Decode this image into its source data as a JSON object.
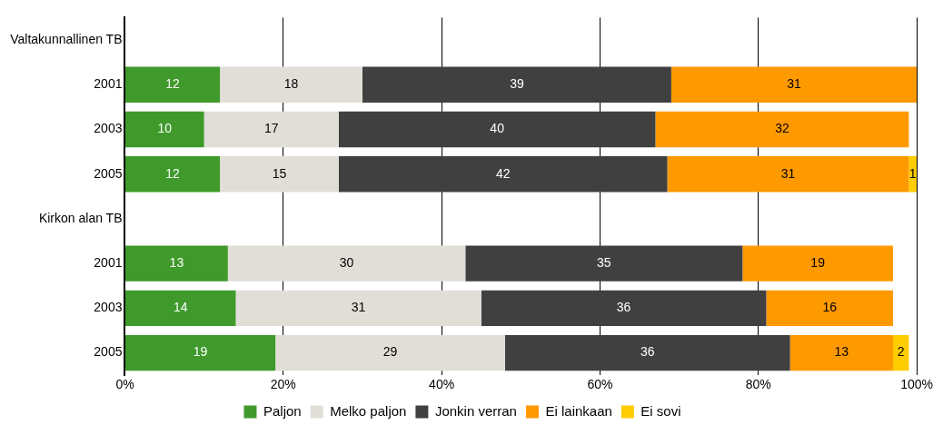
{
  "chart_data": {
    "type": "bar",
    "orientation": "horizontal",
    "stacked": true,
    "categories": [
      "Valtakunnallinen TB",
      "2001",
      "2003",
      "2005",
      "Kirkon alan TB",
      "2001",
      "2003",
      "2005"
    ],
    "series": [
      {
        "name": "Paljon",
        "color": "#3f9a2b",
        "values": [
          null,
          12,
          10,
          12,
          null,
          13,
          14,
          19
        ],
        "value_labels": [
          null,
          "12",
          "10",
          "12",
          null,
          "13",
          "14",
          "19"
        ]
      },
      {
        "name": "Melko paljon",
        "color": "#e1ded7",
        "values": [
          null,
          18,
          17,
          15,
          null,
          30,
          31,
          29
        ],
        "value_labels": [
          null,
          "18",
          "17",
          "15",
          null,
          "30",
          "31",
          "29"
        ]
      },
      {
        "name": "Jonkin verran",
        "color": "#404040",
        "values": [
          null,
          39,
          40,
          41.5,
          null,
          35,
          36,
          36
        ],
        "value_labels": [
          null,
          "39",
          "40",
          "42",
          null,
          "35",
          "36",
          "36"
        ]
      },
      {
        "name": "Ei lainkaan",
        "color": "#ff9900",
        "values": [
          null,
          31,
          32,
          30.5,
          null,
          19,
          16,
          13
        ],
        "value_labels": [
          null,
          "31",
          "32",
          "31",
          null,
          "19",
          "16",
          "13"
        ]
      },
      {
        "name": "Ei sovi",
        "color": "#ffcc00",
        "values": [
          null,
          null,
          null,
          1,
          null,
          null,
          null,
          2
        ],
        "value_labels": [
          null,
          null,
          null,
          "1",
          null,
          null,
          null,
          "2"
        ]
      }
    ],
    "xlim": [
      0,
      100
    ],
    "xticks": [
      {
        "value": 0,
        "label": "0%"
      },
      {
        "value": 20,
        "label": "20%"
      },
      {
        "value": 40,
        "label": "40%"
      },
      {
        "value": 60,
        "label": "60%"
      },
      {
        "value": 80,
        "label": "80%"
      },
      {
        "value": 100,
        "label": "100%"
      }
    ],
    "grid": "x",
    "legend": "bottom"
  }
}
